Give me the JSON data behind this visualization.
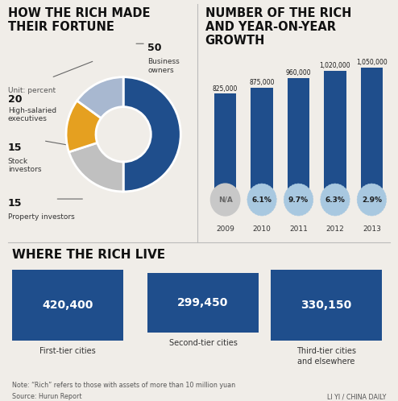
{
  "bg_color": "#f0ede8",
  "title_color": "#111111",
  "divider_color": "#bbbbbb",
  "pie_title": "HOW THE RICH MADE\nTHEIR FORTUNE",
  "pie_unit": "Unit: percent",
  "pie_values": [
    50,
    20,
    15,
    15
  ],
  "pie_colors": [
    "#1f4e8c",
    "#c0c0c0",
    "#e5a020",
    "#a8b8d0"
  ],
  "bar_title": "NUMBER OF THE RICH\nAND YEAR-ON-YEAR\nGROWTH",
  "bar_years": [
    "2009",
    "2010",
    "2011",
    "2012",
    "2013"
  ],
  "bar_values": [
    825000,
    875000,
    960000,
    1020000,
    1050000
  ],
  "bar_value_labels": [
    "825,000",
    "875,000",
    "960,000",
    "1,020,000",
    "1,050,000"
  ],
  "bar_growth": [
    "N/A",
    "6.1%",
    "9.7%",
    "6.3%",
    "2.9%"
  ],
  "bar_color": "#1f4e8c",
  "bar_bubble_color": "#a8c8e0",
  "bar_na_color": "#c8c8c8",
  "live_title": "WHERE THE RICH LIVE",
  "live_values": [
    "420,400",
    "299,450",
    "330,150"
  ],
  "live_labels": [
    "First-tier cities",
    "Second-tier cities",
    "Third-tier cities\nand elsewhere"
  ],
  "live_box_color": "#1f4e8c",
  "note": "Note: “Rich” refers to those with assets of more than 10 million yuan",
  "source": "Source: Hurun Report",
  "credit": "LI YI / CHINA DAILY"
}
